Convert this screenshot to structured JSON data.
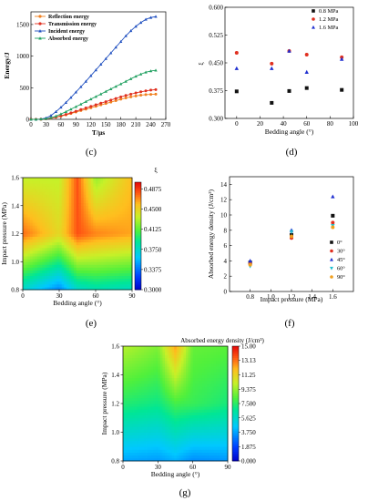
{
  "chart_data": [
    {
      "id": "c",
      "caption": "(c)",
      "type": "line",
      "xlabel": "T/μs",
      "ylabel": "Energy/J",
      "xlim": [
        0,
        270
      ],
      "ylim": [
        0,
        1700
      ],
      "xticks": [
        0,
        30,
        60,
        90,
        120,
        150,
        180,
        210,
        240,
        270
      ],
      "yticks": [
        0,
        500,
        1000,
        1500
      ],
      "legend_position": "top-left",
      "x": [
        0,
        10,
        20,
        30,
        40,
        50,
        60,
        70,
        80,
        90,
        100,
        110,
        120,
        130,
        140,
        150,
        160,
        170,
        180,
        190,
        200,
        210,
        220,
        230,
        240,
        250
      ],
      "series": [
        {
          "name": "Reflection energy",
          "color": "#f08020",
          "marker": "circle",
          "values": [
            0,
            0,
            2,
            8,
            18,
            32,
            50,
            70,
            92,
            115,
            138,
            160,
            182,
            205,
            228,
            250,
            272,
            295,
            318,
            338,
            355,
            370,
            382,
            390,
            395,
            398
          ]
        },
        {
          "name": "Transmission energy",
          "color": "#e03020",
          "marker": "circle",
          "values": [
            0,
            0,
            2,
            8,
            20,
            35,
            55,
            78,
            102,
            128,
            155,
            180,
            205,
            230,
            255,
            280,
            305,
            330,
            355,
            378,
            398,
            418,
            435,
            450,
            462,
            470
          ]
        },
        {
          "name": "Incident energy",
          "color": "#2050c0",
          "marker": "triangle",
          "values": [
            0,
            0,
            5,
            20,
            60,
            120,
            190,
            265,
            345,
            430,
            515,
            600,
            690,
            780,
            870,
            960,
            1050,
            1140,
            1230,
            1320,
            1400,
            1470,
            1530,
            1580,
            1610,
            1625
          ]
        },
        {
          "name": "Absorbed energy",
          "color": "#20a060",
          "marker": "triangle",
          "values": [
            0,
            0,
            3,
            10,
            25,
            50,
            85,
            120,
            160,
            200,
            240,
            280,
            320,
            360,
            400,
            440,
            480,
            520,
            560,
            600,
            640,
            680,
            715,
            745,
            765,
            775
          ]
        }
      ]
    },
    {
      "id": "d",
      "caption": "(d)",
      "type": "scatter",
      "xlabel": "Bedding angle (°)",
      "ylabel": "ξ",
      "xlim": [
        -10,
        100
      ],
      "ylim": [
        0.3,
        0.6
      ],
      "xticks": [
        0,
        20,
        40,
        60,
        80,
        100
      ],
      "yticks": [
        "0.300",
        "0.375",
        "0.450",
        "0.525",
        "0.600"
      ],
      "legend_position": "top-right",
      "series": [
        {
          "name": "0.8 MPa",
          "color": "#111111",
          "marker": "square",
          "points": [
            [
              0,
              0.373
            ],
            [
              30,
              0.342
            ],
            [
              45,
              0.374
            ],
            [
              60,
              0.382
            ],
            [
              90,
              0.377
            ]
          ]
        },
        {
          "name": "1.2 MPa",
          "color": "#e03020",
          "marker": "circle",
          "points": [
            [
              0,
              0.477
            ],
            [
              30,
              0.448
            ],
            [
              45,
              0.482
            ],
            [
              60,
              0.472
            ],
            [
              90,
              0.465
            ]
          ]
        },
        {
          "name": "1.6 MPa",
          "color": "#2030d0",
          "marker": "triangle",
          "points": [
            [
              0,
              0.435
            ],
            [
              30,
              0.435
            ],
            [
              45,
              0.482
            ],
            [
              60,
              0.425
            ],
            [
              90,
              0.46
            ]
          ]
        }
      ]
    },
    {
      "id": "e",
      "caption": "(e)",
      "type": "heatmap",
      "xlabel": "Bedding angle (°)",
      "ylabel": "Impact pressure (MPa)",
      "colorbar_label": "ξ",
      "xlim": [
        0,
        90
      ],
      "ylim": [
        0.8,
        1.6
      ],
      "xticks": [
        0,
        30,
        60,
        90
      ],
      "yticks": [
        "0.8",
        "1.0",
        "1.2",
        "1.4",
        "1.6"
      ],
      "colorbar_range": [
        0.3,
        0.5
      ],
      "colorbar_ticks": [
        "0.4875",
        "0.4500",
        "0.4125",
        "0.3750",
        "0.3375",
        "0.3000"
      ],
      "grid_x": [
        0,
        30,
        45,
        60,
        90
      ],
      "grid_y": [
        0.8,
        1.2,
        1.6
      ],
      "z": [
        [
          0.373,
          0.342,
          0.374,
          0.382,
          0.377
        ],
        [
          0.477,
          0.448,
          0.482,
          0.472,
          0.465
        ],
        [
          0.435,
          0.435,
          0.482,
          0.425,
          0.46
        ]
      ]
    },
    {
      "id": "f",
      "caption": "(f)",
      "type": "scatter",
      "xlabel": "Impact pressure (MPa)",
      "ylabel": "Absorbed energy density (J/cm³)",
      "xlim": [
        0.6,
        1.8
      ],
      "ylim": [
        0,
        15
      ],
      "xticks": [
        "0.8",
        "1.0",
        "1.2",
        "1.4",
        "1.6"
      ],
      "xtick_values": [
        0.8,
        1.0,
        1.2,
        1.4,
        1.6
      ],
      "yticks": [
        0,
        2,
        4,
        6,
        8,
        10,
        12,
        14
      ],
      "legend_position": "right",
      "series": [
        {
          "name": "0°",
          "color": "#111111",
          "marker": "square",
          "points": [
            [
              0.8,
              3.8
            ],
            [
              1.2,
              7.4
            ],
            [
              1.6,
              9.9
            ]
          ]
        },
        {
          "name": "30°",
          "color": "#e03020",
          "marker": "circle",
          "points": [
            [
              0.8,
              3.6
            ],
            [
              1.2,
              7.0
            ],
            [
              1.6,
              9.0
            ]
          ]
        },
        {
          "name": "45°",
          "color": "#2030d0",
          "marker": "triangle",
          "points": [
            [
              0.8,
              4.0
            ],
            [
              1.2,
              8.0
            ],
            [
              1.6,
              12.4
            ]
          ]
        },
        {
          "name": "60°",
          "color": "#20c0d0",
          "marker": "triangle-down",
          "points": [
            [
              0.8,
              3.3
            ],
            [
              1.2,
              7.8
            ],
            [
              1.6,
              8.6
            ]
          ]
        },
        {
          "name": "90°",
          "color": "#f0a020",
          "marker": "circle",
          "points": [
            [
              0.8,
              3.5
            ],
            [
              1.2,
              7.2
            ],
            [
              1.6,
              8.4
            ]
          ]
        }
      ]
    },
    {
      "id": "g",
      "caption": "(g)",
      "type": "heatmap",
      "xlabel": "Bedding angle (°)",
      "ylabel": "Impact pressure (MPa)",
      "colorbar_label": "Absorbed energy density (J/cm³)",
      "xlim": [
        0,
        90
      ],
      "ylim": [
        0.8,
        1.6
      ],
      "xticks": [
        0,
        30,
        60,
        90
      ],
      "yticks": [
        "0.8",
        "1.0",
        "1.2",
        "1.4",
        "1.6"
      ],
      "colorbar_range": [
        0,
        15
      ],
      "colorbar_ticks": [
        "15.00",
        "13.13",
        "11.25",
        "9.375",
        "7.500",
        "5.625",
        "3.750",
        "1.875",
        "0.000"
      ],
      "grid_x": [
        0,
        30,
        45,
        60,
        90
      ],
      "grid_y": [
        0.8,
        1.2,
        1.6
      ],
      "z": [
        [
          3.8,
          3.6,
          4.0,
          3.3,
          3.5
        ],
        [
          7.4,
          7.0,
          8.0,
          7.8,
          7.2
        ],
        [
          9.9,
          9.0,
          12.4,
          8.6,
          8.4
        ]
      ]
    }
  ]
}
